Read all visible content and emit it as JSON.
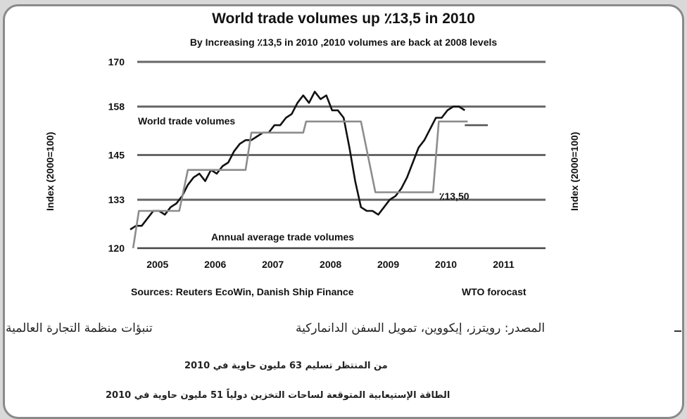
{
  "header": {
    "title": "World trade volumes up ٪13,5 in 2010",
    "subtitle": "By Increasing ٪13,5 in 2010 ,2010 volumes are back at 2008 levels"
  },
  "axes": {
    "ylabel_left": "Index (2000=100)",
    "ylabel_right": "Index (2000=100)"
  },
  "footer": {
    "sources": "Sources: Reuters EcoWin, Danish Ship Finance",
    "forecast": "WTO forocast"
  },
  "arabic": {
    "forecast_label": "تنبؤات منظمة التجارة العالمية",
    "source_label": "المصدر: رويترز، إيكووين، تمويل السفن الدانماركية",
    "line1": "من المنتظر تسليم 63 مليون حاوية في 2010",
    "line2": "الطاقة الإستيعابية المتوقعة لساحات التخزين دولياً 51 مليون حاوية في 2010"
  },
  "chart_data": {
    "type": "line",
    "title": "World trade volumes up ٪13,5 in 2010",
    "subtitle": "By Increasing ٪13,5 in 2010 ,2010 volumes are back at 2008 levels",
    "ylabel": "Index (2000=100)",
    "xlim": [
      2004.6,
      2011.8
    ],
    "ylim": [
      120,
      170
    ],
    "yticks": [
      120,
      133,
      145,
      158,
      170
    ],
    "xticks": [
      2005,
      2006,
      2007,
      2008,
      2009,
      2010,
      2011
    ],
    "grid": true,
    "annotations": {
      "monthly_label": "World trade volumes",
      "annual_label": "Annual average trade volumes",
      "growth_label": "٪13,50"
    },
    "series": [
      {
        "name": "World trade volumes",
        "color": "#111111",
        "x": [
          2004.6,
          2004.7,
          2004.8,
          2004.9,
          2005.0,
          2005.1,
          2005.2,
          2005.3,
          2005.4,
          2005.5,
          2005.6,
          2005.7,
          2005.8,
          2005.9,
          2006.0,
          2006.1,
          2006.2,
          2006.3,
          2006.4,
          2006.5,
          2006.6,
          2006.7,
          2006.8,
          2006.9,
          2007.0,
          2007.1,
          2007.2,
          2007.3,
          2007.4,
          2007.5,
          2007.6,
          2007.7,
          2007.8,
          2007.9,
          2008.0,
          2008.1,
          2008.2,
          2008.3,
          2008.4,
          2008.5,
          2008.6,
          2008.7,
          2008.8,
          2008.9,
          2009.0,
          2009.1,
          2009.2,
          2009.3,
          2009.4,
          2009.5,
          2009.6,
          2009.7,
          2009.8,
          2009.9,
          2010.0,
          2010.1,
          2010.2,
          2010.3,
          2010.4
        ],
        "values": [
          125,
          126,
          126,
          128,
          130,
          130,
          129,
          131,
          132,
          134,
          137,
          139,
          140,
          138,
          141,
          140,
          142,
          143,
          146,
          148,
          149,
          149,
          150,
          151,
          151,
          153,
          153,
          155,
          156,
          159,
          161,
          159,
          162,
          160,
          161,
          157,
          157,
          155,
          147,
          138,
          131,
          130,
          130,
          129,
          131,
          133,
          134,
          136,
          139,
          143,
          147,
          149,
          152,
          155,
          155,
          157,
          158,
          158,
          157
        ]
      },
      {
        "name": "Annual average trade volumes",
        "color": "#8c8c8c",
        "x": [
          2004.65,
          2004.75,
          2005.45,
          2005.6,
          2006.6,
          2006.7,
          2007.6,
          2007.65,
          2008.6,
          2008.85,
          2009.85,
          2009.95,
          2010.45
        ],
        "values": [
          120,
          130,
          130,
          141,
          141,
          151,
          151,
          154,
          154,
          135,
          135,
          154,
          154
        ]
      },
      {
        "name": "WTO forocast",
        "color": "#555555",
        "x": [
          2010.4,
          2010.8
        ],
        "values": [
          153,
          153
        ]
      }
    ]
  }
}
